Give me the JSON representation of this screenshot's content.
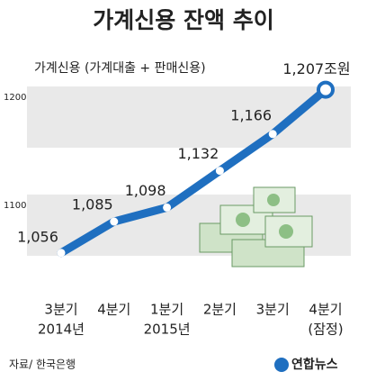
{
  "chart_data": {
    "type": "line",
    "title": "가계신용 잔액 추이",
    "subtitle": "가계신용 (가계대출 + 판매신용)",
    "categories": [
      "3분기",
      "4분기",
      "1분기",
      "2분기",
      "3분기",
      "4분기"
    ],
    "sub_labels": [
      "2014년",
      null,
      "2015년",
      null,
      null,
      "(잠정)"
    ],
    "values": [
      1056,
      1085,
      1098,
      1132,
      1166,
      1207
    ],
    "value_labels": [
      "1,056",
      "1,085",
      "1,098",
      "1,132",
      "1,166",
      "1,207조원"
    ],
    "color": "#1f6fc0",
    "ylim": [
      1030,
      1220
    ],
    "yticks": [
      1100,
      1200
    ],
    "source": "자료/ 한국은행",
    "logo": "연합뉴스"
  }
}
